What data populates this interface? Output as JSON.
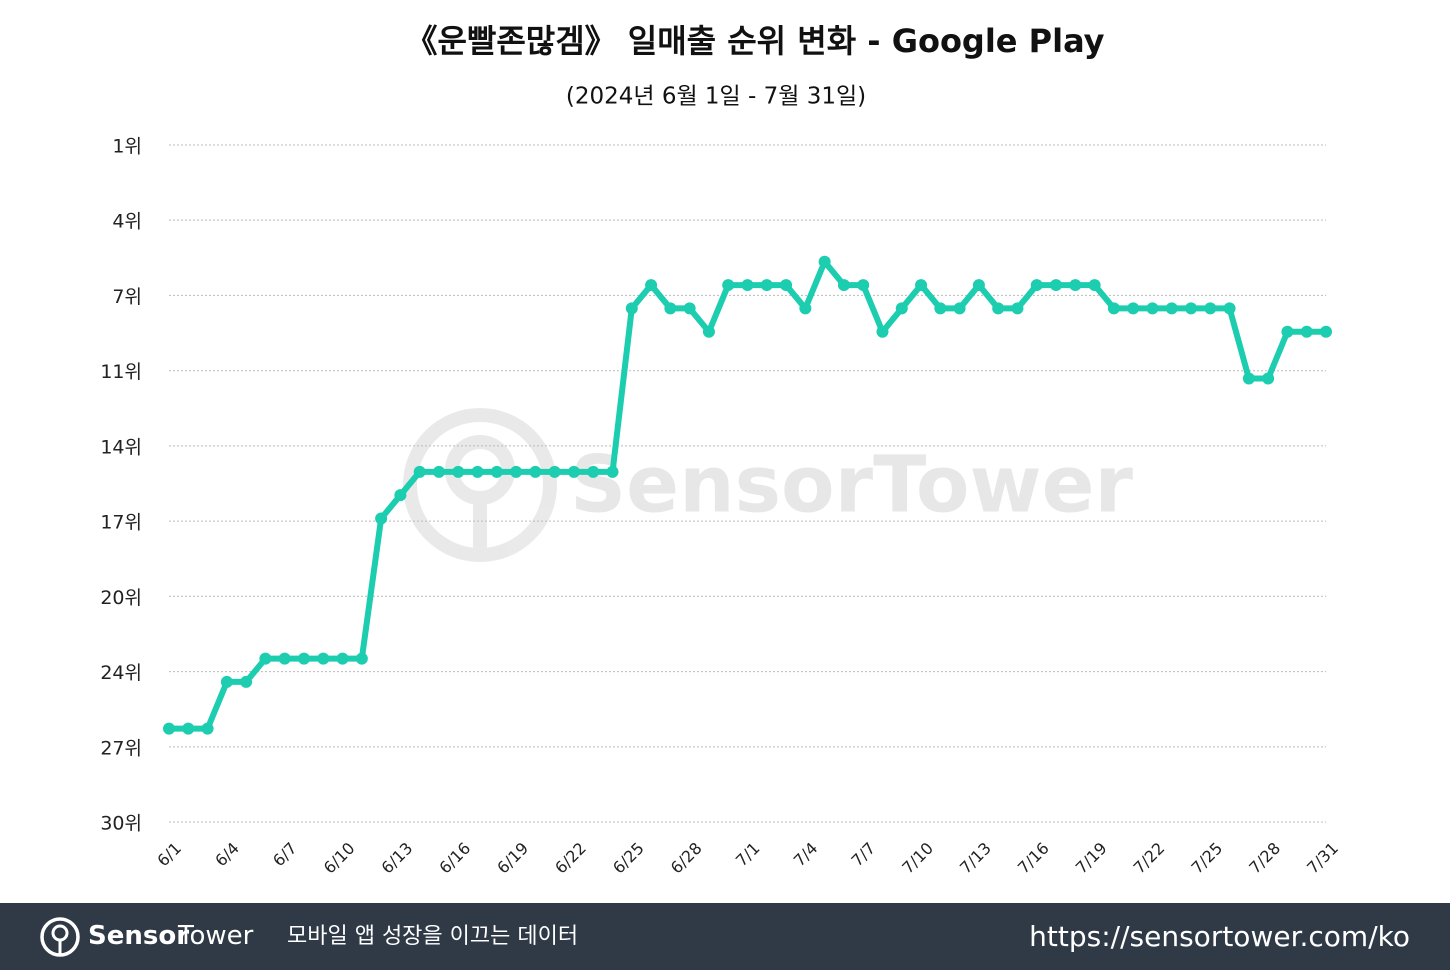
{
  "chart_data": {
    "type": "line",
    "title": "《운빨존많겜》 일매출 순위 변화 - Google Play",
    "subtitle": "(2024년 6월 1일 - 7월 31일)",
    "watermark": "SensorTower",
    "categories": [
      "6/1",
      null,
      null,
      "6/4",
      null,
      null,
      "6/7",
      null,
      null,
      "6/10",
      null,
      null,
      "6/13",
      null,
      null,
      "6/16",
      null,
      null,
      "6/19",
      null,
      null,
      "6/22",
      null,
      null,
      "6/25",
      null,
      null,
      "6/28",
      null,
      null,
      "7/1",
      null,
      null,
      "7/4",
      null,
      null,
      "7/7",
      null,
      null,
      "7/10",
      null,
      null,
      "7/13",
      null,
      null,
      "7/16",
      null,
      null,
      "7/19",
      null,
      null,
      "7/22",
      null,
      null,
      "7/25",
      null,
      null,
      "7/28",
      null,
      null,
      "7/31"
    ],
    "values": [
      26,
      26,
      26,
      24,
      24,
      23,
      23,
      23,
      23,
      23,
      23,
      17,
      16,
      15,
      15,
      15,
      15,
      15,
      15,
      15,
      15,
      15,
      15,
      15,
      8,
      7,
      8,
      8,
      9,
      7,
      7,
      7,
      7,
      8,
      6,
      7,
      7,
      9,
      8,
      7,
      8,
      8,
      7,
      8,
      8,
      7,
      7,
      7,
      7,
      8,
      8,
      8,
      8,
      8,
      8,
      8,
      11,
      11,
      9,
      9,
      9
    ],
    "color": "#1ccdb0",
    "ylim": [
      1,
      30
    ],
    "y_inverted": true,
    "grid": true,
    "yticks": [
      {
        "value": 1,
        "label": "1위"
      },
      {
        "value": 4.22,
        "label": "4위"
      },
      {
        "value": 7.44,
        "label": "7위"
      },
      {
        "value": 10.67,
        "label": "11위"
      },
      {
        "value": 13.89,
        "label": "14위"
      },
      {
        "value": 17.11,
        "label": "17위"
      },
      {
        "value": 20.33,
        "label": "20위"
      },
      {
        "value": 23.56,
        "label": "24위"
      },
      {
        "value": 26.78,
        "label": "27위"
      },
      {
        "value": 30,
        "label": "30위"
      }
    ]
  },
  "footer": {
    "brand_bold": "Sensor",
    "brand_light": "Tower",
    "tagline": "모바일 앱 성장을 이끄는 데이터",
    "url": "https://sensortower.com/ko"
  }
}
